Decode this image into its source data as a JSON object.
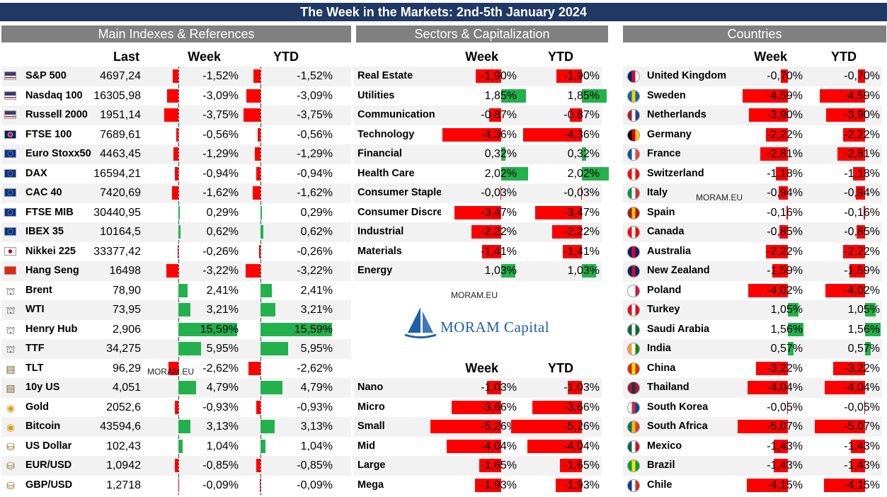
{
  "title": "The Week in the Markets: 2nd-5th January 2024",
  "sections": {
    "main": "Main Indexes & References",
    "sectors": "Sectors & Capitalization",
    "countries": "Countries"
  },
  "columns": {
    "last": "Last",
    "week": "Week",
    "ytd": "YTD"
  },
  "watermark": "MORAM.EU",
  "logo_text": "MORAM Capital",
  "colors": {
    "positive": "#22b14c",
    "negative": "#ff0000",
    "banner": "#1f3864",
    "section_header": "#808080",
    "logo": "#1f5fa8"
  },
  "main_indexes": [
    {
      "icon": "us-flag",
      "name": "S&P 500",
      "last": "4697,24",
      "week": "-1,52%",
      "ytd": "-1,52%",
      "week_value": -1.52,
      "ytd_value": -1.52
    },
    {
      "icon": "us-flag",
      "name": "Nasdaq 100",
      "last": "16305,98",
      "week": "-3,09%",
      "ytd": "-3,09%",
      "week_value": -3.09,
      "ytd_value": -3.09
    },
    {
      "icon": "us-flag",
      "name": "Russell 2000",
      "last": "1951,14",
      "week": "-3,75%",
      "ytd": "-3,75%",
      "week_value": -3.75,
      "ytd_value": -3.75
    },
    {
      "icon": "uk-flag",
      "name": "FTSE 100",
      "last": "7689,61",
      "week": "-0,56%",
      "ytd": "-0,56%",
      "week_value": -0.56,
      "ytd_value": -0.56
    },
    {
      "icon": "eu-flag",
      "name": "Euro Stoxx50",
      "last": "4463,45",
      "week": "-1,29%",
      "ytd": "-1,29%",
      "week_value": -1.29,
      "ytd_value": -1.29
    },
    {
      "icon": "eu-flag",
      "name": "DAX",
      "last": "16594,21",
      "week": "-0,94%",
      "ytd": "-0,94%",
      "week_value": -0.94,
      "ytd_value": -0.94
    },
    {
      "icon": "eu-flag",
      "name": "CAC 40",
      "last": "7420,69",
      "week": "-1,62%",
      "ytd": "-1,62%",
      "week_value": -1.62,
      "ytd_value": -1.62
    },
    {
      "icon": "eu-flag",
      "name": "FTSE MIB",
      "last": "30440,95",
      "week": "0,29%",
      "ytd": "0,29%",
      "week_value": 0.29,
      "ytd_value": 0.29
    },
    {
      "icon": "eu-flag",
      "name": "IBEX 35",
      "last": "10164,5",
      "week": "0,62%",
      "ytd": "0,62%",
      "week_value": 0.62,
      "ytd_value": 0.62
    },
    {
      "icon": "japan-flag",
      "name": "Nikkei 225",
      "last": "33377,42",
      "week": "-0,26%",
      "ytd": "-0,26%",
      "week_value": -0.26,
      "ytd_value": -0.26
    },
    {
      "icon": "china-flag",
      "name": "Hang Seng",
      "last": "16498",
      "week": "-3,22%",
      "ytd": "-3,22%",
      "week_value": -3.22,
      "ytd_value": -3.22
    },
    {
      "icon": "oil-rig-icon",
      "name": "Brent",
      "last": "78,90",
      "week": "2,41%",
      "ytd": "2,41%",
      "week_value": 2.41,
      "ytd_value": 2.41
    },
    {
      "icon": "oil-rig-icon",
      "name": "WTI",
      "last": "73,95",
      "week": "3,21%",
      "ytd": "3,21%",
      "week_value": 3.21,
      "ytd_value": 3.21
    },
    {
      "icon": "oil-rig-icon",
      "name": "Henry Hub",
      "last": "2,906",
      "week": "15,59%",
      "ytd": "15,59%",
      "week_value": 15.59,
      "ytd_value": 15.59
    },
    {
      "icon": "oil-rig-icon",
      "name": "TTF",
      "last": "34,275",
      "week": "5,95%",
      "ytd": "5,95%",
      "week_value": 5.95,
      "ytd_value": 5.95
    },
    {
      "icon": "bond-icon",
      "name": "TLT",
      "last": "96,29",
      "week": "-2,62%",
      "ytd": "-2,62%",
      "week_value": -2.62,
      "ytd_value": -2.62
    },
    {
      "icon": "bond-icon",
      "name": "10y US",
      "last": "4,051",
      "week": "4,79%",
      "ytd": "4,79%",
      "week_value": 4.79,
      "ytd_value": 4.79
    },
    {
      "icon": "gold-icon",
      "name": "Gold",
      "last": "2052,6",
      "week": "-0,93%",
      "ytd": "-0,93%",
      "week_value": -0.93,
      "ytd_value": -0.93
    },
    {
      "icon": "gold-icon",
      "name": "Bitcoin",
      "last": "43594,6",
      "week": "3,13%",
      "ytd": "3,13%",
      "week_value": 3.13,
      "ytd_value": 3.13
    },
    {
      "icon": "coins-icon",
      "name": "US Dollar",
      "last": "102,43",
      "week": "1,04%",
      "ytd": "1,04%",
      "week_value": 1.04,
      "ytd_value": 1.04
    },
    {
      "icon": "coins-icon",
      "name": "EUR/USD",
      "last": "1,0942",
      "week": "-0,85%",
      "ytd": "-0,85%",
      "week_value": -0.85,
      "ytd_value": -0.85
    },
    {
      "icon": "coins-icon",
      "name": "GBP/USD",
      "last": "1,2718",
      "week": "-0,09%",
      "ytd": "-0,09%",
      "week_value": -0.09,
      "ytd_value": -0.09
    }
  ],
  "sectors": [
    {
      "name": "Real Estate",
      "week": "-1,90%",
      "ytd": "-1,90%",
      "week_value": -1.9,
      "ytd_value": -1.9
    },
    {
      "name": "Utilities",
      "week": "1,85%",
      "ytd": "1,85%",
      "week_value": 1.85,
      "ytd_value": 1.85
    },
    {
      "name": "Communication",
      "week": "-0,87%",
      "ytd": "-0,87%",
      "week_value": -0.87,
      "ytd_value": -0.87
    },
    {
      "name": "Technology",
      "week": "-4,36%",
      "ytd": "-4,36%",
      "week_value": -4.36,
      "ytd_value": -4.36
    },
    {
      "name": "Financial",
      "week": "0,32%",
      "ytd": "0,32%",
      "week_value": 0.32,
      "ytd_value": 0.32
    },
    {
      "name": "Health Care",
      "week": "2,02%",
      "ytd": "2,02%",
      "week_value": 2.02,
      "ytd_value": 2.02
    },
    {
      "name": "Consumer Staple",
      "week": "-0,03%",
      "ytd": "-0,03%",
      "week_value": -0.03,
      "ytd_value": -0.03
    },
    {
      "name": "Consumer Discre",
      "week": "-3,47%",
      "ytd": "-3,47%",
      "week_value": -3.47,
      "ytd_value": -3.47
    },
    {
      "name": "Industrial",
      "week": "-2,22%",
      "ytd": "-2,22%",
      "week_value": -2.22,
      "ytd_value": -2.22
    },
    {
      "name": "Materials",
      "week": "-1,41%",
      "ytd": "-1,41%",
      "week_value": -1.41,
      "ytd_value": -1.41
    },
    {
      "name": "Energy",
      "week": "1,03%",
      "ytd": "1,03%",
      "week_value": 1.03,
      "ytd_value": 1.03
    }
  ],
  "capitalization": [
    {
      "name": "Nano",
      "week": "-1,03%",
      "ytd": "-1,03%",
      "week_value": -1.03,
      "ytd_value": -1.03
    },
    {
      "name": "Micro",
      "week": "-3,66%",
      "ytd": "-3,66%",
      "week_value": -3.66,
      "ytd_value": -3.66
    },
    {
      "name": "Small",
      "week": "-5,26%",
      "ytd": "-5,26%",
      "week_value": -5.26,
      "ytd_value": -5.26
    },
    {
      "name": "Mid",
      "week": "-4,04%",
      "ytd": "-4,04%",
      "week_value": -4.04,
      "ytd_value": -4.04
    },
    {
      "name": "Large",
      "week": "-1,65%",
      "ytd": "-1,65%",
      "week_value": -1.65,
      "ytd_value": -1.65
    },
    {
      "name": "Mega",
      "week": "-1,93%",
      "ytd": "-1,93%",
      "week_value": -1.93,
      "ytd_value": -1.93
    }
  ],
  "countries": [
    {
      "flag": [
        "#012169",
        "#c8102e",
        "#ffffff"
      ],
      "name": "United Kingdom",
      "week": "-0,70%",
      "ytd": "-0,70%",
      "week_value": -0.7,
      "ytd_value": -0.7
    },
    {
      "flag": [
        "#006aa7",
        "#fecc00",
        "#006aa7"
      ],
      "name": "Sweden",
      "week": "-4,59%",
      "ytd": "-4,59%",
      "week_value": -4.59,
      "ytd_value": -4.59
    },
    {
      "flag": [
        "#ae1c28",
        "#ffffff",
        "#21468b"
      ],
      "name": "Netherlands",
      "week": "-3,90%",
      "ytd": "-3,90%",
      "week_value": -3.9,
      "ytd_value": -3.9
    },
    {
      "flag": [
        "#000000",
        "#dd0000",
        "#ffce00"
      ],
      "name": "Germany",
      "week": "-2,22%",
      "ytd": "-2,22%",
      "week_value": -2.22,
      "ytd_value": -2.22
    },
    {
      "flag": [
        "#0055a4",
        "#ffffff",
        "#ef4135"
      ],
      "name": "France",
      "week": "-2,81%",
      "ytd": "-2,81%",
      "week_value": -2.81,
      "ytd_value": -2.81
    },
    {
      "flag": [
        "#ff0000",
        "#ffffff",
        "#ff0000"
      ],
      "name": "Switzerland",
      "week": "-1,18%",
      "ytd": "-1,18%",
      "week_value": -1.18,
      "ytd_value": -1.18
    },
    {
      "flag": [
        "#009246",
        "#ffffff",
        "#ce2b37"
      ],
      "name": "Italy",
      "week": "-0,94%",
      "ytd": "-0,94%",
      "week_value": -0.94,
      "ytd_value": -0.94
    },
    {
      "flag": [
        "#aa151b",
        "#f1bf00",
        "#aa151b"
      ],
      "name": "Spain",
      "week": "-0,16%",
      "ytd": "-0,16%",
      "week_value": -0.16,
      "ytd_value": -0.16
    },
    {
      "flag": [
        "#ff0000",
        "#ffffff",
        "#ff0000"
      ],
      "name": "Canada",
      "week": "-0,85%",
      "ytd": "-0,85%",
      "week_value": -0.85,
      "ytd_value": -0.85
    },
    {
      "flag": [
        "#012169",
        "#e4002b",
        "#012169"
      ],
      "name": "Australia",
      "week": "-2,22%",
      "ytd": "-2,22%",
      "week_value": -2.22,
      "ytd_value": -2.22
    },
    {
      "flag": [
        "#012169",
        "#c8102e",
        "#012169"
      ],
      "name": "New Zealand",
      "week": "-1,59%",
      "ytd": "-1,59%",
      "week_value": -1.59,
      "ytd_value": -1.59
    },
    {
      "flag": [
        "#ffffff",
        "#ffffff",
        "#dc143c"
      ],
      "name": "Poland",
      "week": "-4,02%",
      "ytd": "-4,02%",
      "week_value": -4.02,
      "ytd_value": -4.02
    },
    {
      "flag": [
        "#e30a17",
        "#ffffff",
        "#e30a17"
      ],
      "name": "Turkey",
      "week": "1,05%",
      "ytd": "1,05%",
      "week_value": 1.05,
      "ytd_value": 1.05
    },
    {
      "flag": [
        "#006c35",
        "#ffffff",
        "#006c35"
      ],
      "name": "Saudi Arabia",
      "week": "1,56%",
      "ytd": "1,56%",
      "week_value": 1.56,
      "ytd_value": 1.56
    },
    {
      "flag": [
        "#ff9933",
        "#ffffff",
        "#138808"
      ],
      "name": "India",
      "week": "0,57%",
      "ytd": "0,57%",
      "week_value": 0.57,
      "ytd_value": 0.57
    },
    {
      "flag": [
        "#de2910",
        "#ffde00",
        "#de2910"
      ],
      "name": "China",
      "week": "-3,22%",
      "ytd": "-3,22%",
      "week_value": -3.22,
      "ytd_value": -3.22
    },
    {
      "flag": [
        "#a51931",
        "#2d2a4a",
        "#a51931"
      ],
      "name": "Thailand",
      "week": "-4,04%",
      "ytd": "-4,04%",
      "week_value": -4.04,
      "ytd_value": -4.04
    },
    {
      "flag": [
        "#ffffff",
        "#cd2e3a",
        "#0047a0"
      ],
      "name": "South Korea",
      "week": "-0,05%",
      "ytd": "-0,05%",
      "week_value": -0.05,
      "ytd_value": -0.05
    },
    {
      "flag": [
        "#007a4d",
        "#ffb612",
        "#de3831"
      ],
      "name": "South Africa",
      "week": "-5,07%",
      "ytd": "-5,07%",
      "week_value": -5.07,
      "ytd_value": -5.07
    },
    {
      "flag": [
        "#006847",
        "#ffffff",
        "#ce1126"
      ],
      "name": "Mexico",
      "week": "-1,43%",
      "ytd": "-1,43%",
      "week_value": -1.43,
      "ytd_value": -1.43
    },
    {
      "flag": [
        "#009c3b",
        "#ffdf00",
        "#009c3b"
      ],
      "name": "Brazil",
      "week": "-1,43%",
      "ytd": "-1,43%",
      "week_value": -1.43,
      "ytd_value": -1.43
    },
    {
      "flag": [
        "#0039a6",
        "#ffffff",
        "#d52b1e"
      ],
      "name": "Chile",
      "week": "-4,15%",
      "ytd": "-4,15%",
      "week_value": -4.15,
      "ytd_value": -4.15
    }
  ]
}
